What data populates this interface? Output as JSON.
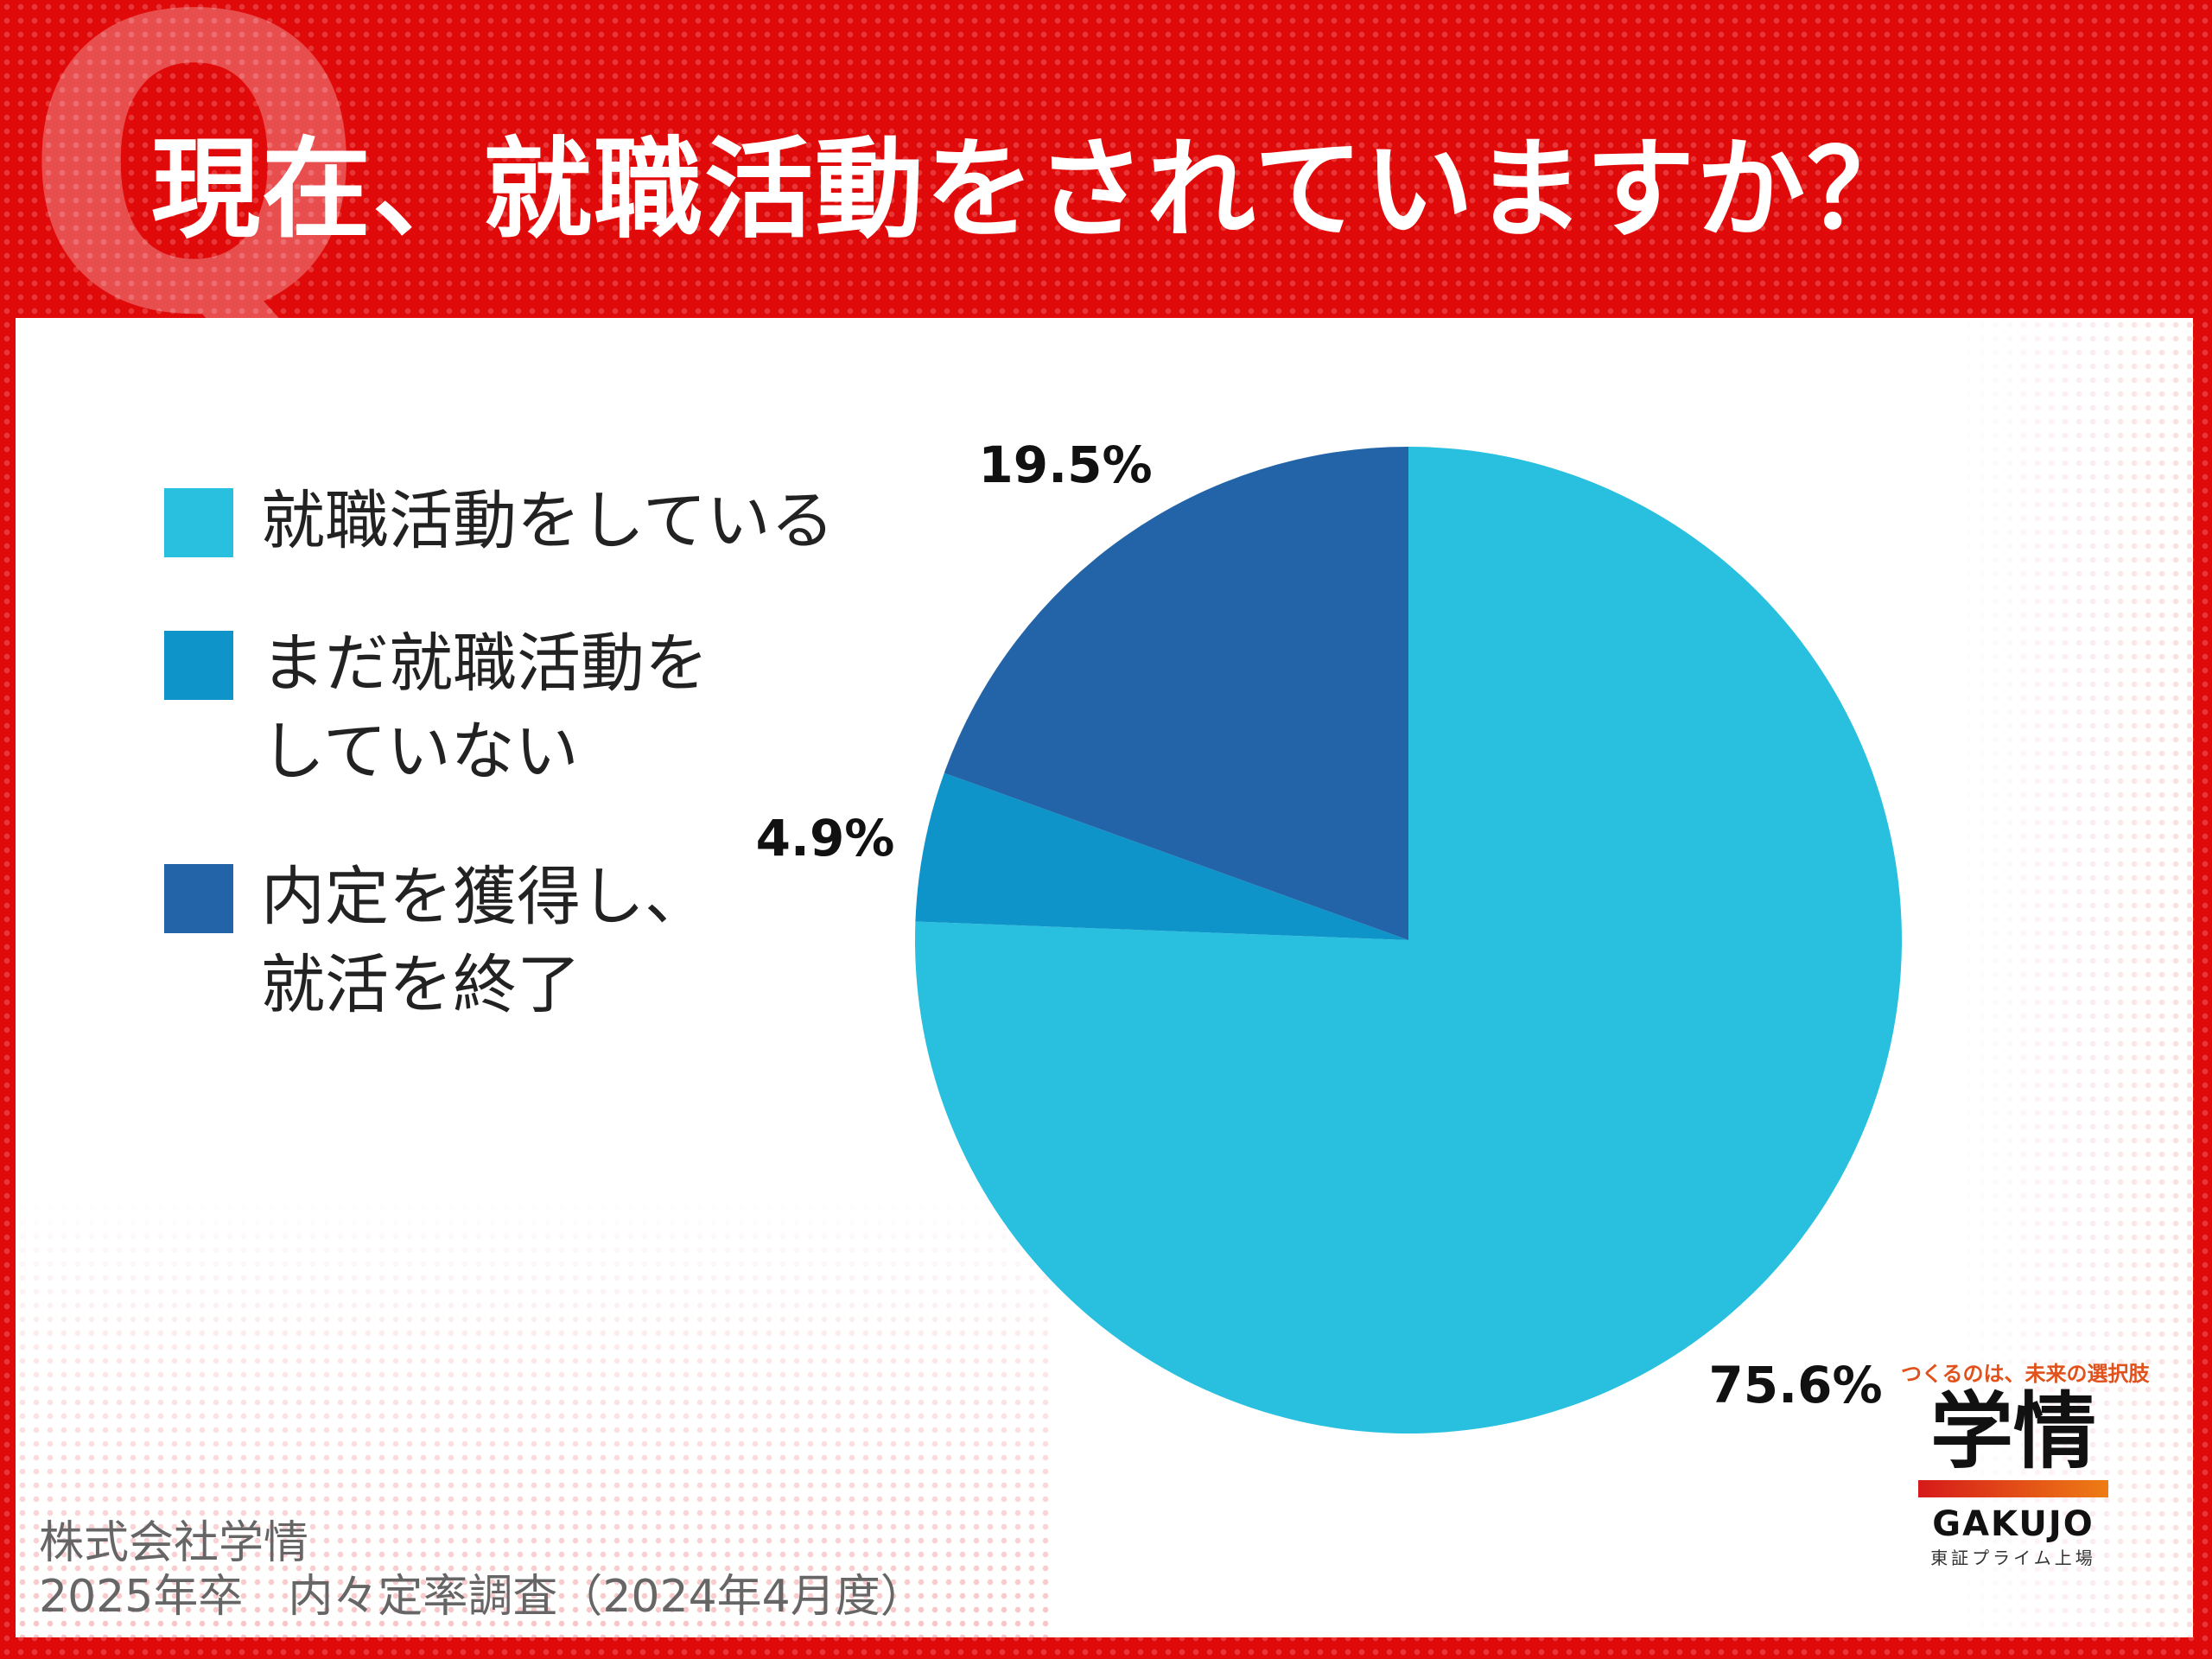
{
  "header": {
    "badge": "Q",
    "title": "現在、就職活動をされていますか？"
  },
  "chart_data": {
    "type": "pie",
    "start_angle_deg": 0,
    "direction": "clockwise",
    "slices": [
      {
        "label": "就職活動をしている",
        "value": 75.6,
        "data_label": "75.6%",
        "color": "#29bfdf"
      },
      {
        "label": "まだ就職活動をしていない",
        "value": 4.9,
        "data_label": "4.9%",
        "color": "#0e94c8"
      },
      {
        "label": "内定を獲得し、就活を終了",
        "value": 19.5,
        "data_label": "19.5%",
        "color": "#2364a8"
      }
    ],
    "legend": {
      "placement": "left",
      "items": [
        {
          "lines": [
            "就職活動をしている"
          ],
          "color": "#29bfdf"
        },
        {
          "lines": [
            "まだ就職活動を",
            "していない"
          ],
          "color": "#0e94c8"
        },
        {
          "lines": [
            "内定を獲得し、",
            "就活を終了"
          ],
          "color": "#2364a8"
        }
      ]
    }
  },
  "brand": {
    "tagline": "つくるのは、未来の選択肢",
    "name": "学情",
    "roman": "GAKUJO",
    "sub": "東証プライム上場"
  },
  "source": {
    "line1": "株式会社学情",
    "line2": "2025年卒　内々定率調査（2024年4月度）"
  },
  "colors": {
    "background": "#e00a0a",
    "panel": "#ffffff"
  }
}
